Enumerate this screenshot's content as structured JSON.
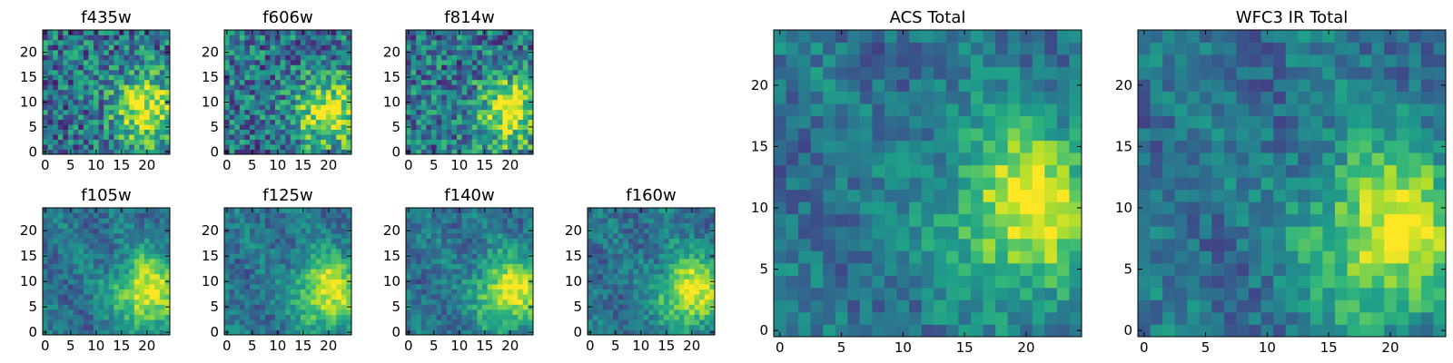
{
  "chart_data": [
    {
      "type": "heatmap",
      "title": "f435w",
      "xticks": [
        0,
        5,
        10,
        15,
        20
      ],
      "yticks": [
        0,
        5,
        10,
        15,
        20
      ],
      "xlim": [
        -0.5,
        24.5
      ],
      "ylim": [
        -0.5,
        24.5
      ],
      "grid_size": [
        25,
        25
      ],
      "bright_region_center": [
        20,
        8
      ],
      "colormap": "viridis"
    },
    {
      "type": "heatmap",
      "title": "f606w",
      "xticks": [
        0,
        5,
        10,
        15,
        20
      ],
      "yticks": [
        0,
        5,
        10,
        15,
        20
      ],
      "xlim": [
        -0.5,
        24.5
      ],
      "ylim": [
        -0.5,
        24.5
      ],
      "grid_size": [
        25,
        25
      ],
      "bright_region_center": [
        20,
        8
      ],
      "colormap": "viridis"
    },
    {
      "type": "heatmap",
      "title": "f814w",
      "xticks": [
        0,
        5,
        10,
        15,
        20
      ],
      "yticks": [
        0,
        5,
        10,
        15,
        20
      ],
      "xlim": [
        -0.5,
        24.5
      ],
      "ylim": [
        -0.5,
        24.5
      ],
      "grid_size": [
        25,
        25
      ],
      "bright_region_center": [
        20,
        8
      ],
      "colormap": "viridis"
    },
    {
      "type": "heatmap",
      "title": "f105w",
      "xticks": [
        0,
        5,
        10,
        15,
        20
      ],
      "yticks": [
        0,
        5,
        10,
        15,
        20
      ],
      "xlim": [
        -0.5,
        24.5
      ],
      "ylim": [
        -0.5,
        24.5
      ],
      "grid_size": [
        25,
        25
      ],
      "bright_region_center": [
        20,
        8
      ],
      "colormap": "viridis"
    },
    {
      "type": "heatmap",
      "title": "f125w",
      "xticks": [
        0,
        5,
        10,
        15,
        20
      ],
      "yticks": [
        0,
        5,
        10,
        15,
        20
      ],
      "xlim": [
        -0.5,
        24.5
      ],
      "ylim": [
        -0.5,
        24.5
      ],
      "grid_size": [
        25,
        25
      ],
      "bright_region_center": [
        20,
        8
      ],
      "colormap": "viridis"
    },
    {
      "type": "heatmap",
      "title": "f140w",
      "xticks": [
        0,
        5,
        10,
        15,
        20
      ],
      "yticks": [
        0,
        5,
        10,
        15,
        20
      ],
      "xlim": [
        -0.5,
        24.5
      ],
      "ylim": [
        -0.5,
        24.5
      ],
      "grid_size": [
        25,
        25
      ],
      "bright_region_center": [
        20,
        8
      ],
      "colormap": "viridis"
    },
    {
      "type": "heatmap",
      "title": "f160w",
      "xticks": [
        0,
        5,
        10,
        15,
        20
      ],
      "yticks": [
        0,
        5,
        10,
        15,
        20
      ],
      "xlim": [
        -0.5,
        24.5
      ],
      "ylim": [
        -0.5,
        24.5
      ],
      "grid_size": [
        25,
        25
      ],
      "bright_region_center": [
        20,
        8
      ],
      "colormap": "viridis"
    },
    {
      "type": "heatmap",
      "title": "ACS Total",
      "xticks": [
        0,
        5,
        10,
        15,
        20
      ],
      "yticks": [
        0,
        5,
        10,
        15,
        20
      ],
      "xlim": [
        -0.5,
        24.5
      ],
      "ylim": [
        -0.5,
        24.5
      ],
      "grid_size": [
        25,
        25
      ],
      "bright_region_center": [
        20,
        10
      ],
      "colormap": "viridis"
    },
    {
      "type": "heatmap",
      "title": "WFC3 IR Total",
      "xticks": [
        0,
        5,
        10,
        15,
        20
      ],
      "yticks": [
        0,
        5,
        10,
        15,
        20
      ],
      "xlim": [
        -0.5,
        24.5
      ],
      "ylim": [
        -0.5,
        24.5
      ],
      "grid_size": [
        25,
        25
      ],
      "bright_region_center": [
        20,
        8
      ],
      "colormap": "viridis"
    }
  ]
}
